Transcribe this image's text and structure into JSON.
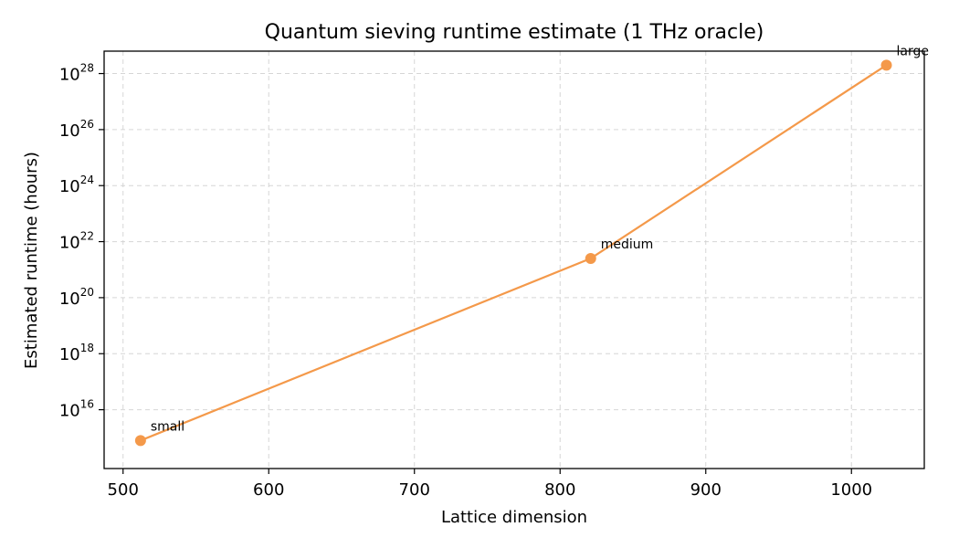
{
  "chart_data": {
    "type": "line",
    "title": "Quantum sieving runtime estimate (1 THz oracle)",
    "xlabel": "Lattice dimension",
    "ylabel": "Estimated runtime (hours)",
    "xlim": [
      487,
      1050
    ],
    "y_log_scale": true,
    "ylim_log10": [
      13.9,
      28.8
    ],
    "grid": true,
    "grid_style": "dashed",
    "line_color": "#f4994a",
    "x_ticks": [
      500,
      600,
      700,
      800,
      900,
      1000
    ],
    "x_tick_labels": [
      "500",
      "600",
      "700",
      "800",
      "900",
      "1000"
    ],
    "y_ticks_log10": [
      16,
      18,
      20,
      22,
      24,
      26,
      28
    ],
    "y_tick_base": "10",
    "y_tick_exponents": [
      "16",
      "18",
      "20",
      "22",
      "24",
      "26",
      "28"
    ],
    "series": [
      {
        "x": [
          512,
          821,
          1024
        ],
        "y_log10": [
          14.9,
          21.4,
          28.3
        ],
        "labels": [
          "small",
          "medium",
          "large"
        ]
      }
    ]
  }
}
